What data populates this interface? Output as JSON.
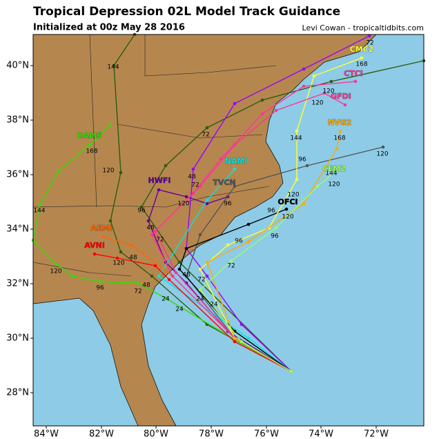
{
  "header": {
    "title": "Tropical Depression 02L Model Track Guidance",
    "subtitle": "Initialized at 00z May 28 2016",
    "credit": "Levi Cowan - tropicaltidbits.com"
  },
  "map": {
    "lat_labels": [
      "40°N",
      "38°N",
      "36°N",
      "34°N",
      "32°N",
      "30°N",
      "28°N"
    ],
    "lon_labels": [
      "84°W",
      "82°W",
      "80°W",
      "78°W",
      "76°W",
      "74°W",
      "72°W"
    ],
    "models": [
      {
        "name": "BAMS",
        "color": "#33dd00"
      },
      {
        "name": "HWFI",
        "color": "#660099"
      },
      {
        "name": "NAMI",
        "color": "#00e5e5"
      },
      {
        "name": "TVCN",
        "color": "#555555"
      },
      {
        "name": "OFCI",
        "color": "#000000"
      },
      {
        "name": "AEMI",
        "color": "#ff6600"
      },
      {
        "name": "AVNI",
        "color": "#ff0000"
      },
      {
        "name": "CMC2",
        "color": "#ffff33"
      },
      {
        "name": "CTCI",
        "color": "#ff3399"
      },
      {
        "name": "GFDI",
        "color": "#ff3399"
      },
      {
        "name": "NVG2",
        "color": "#ffaa00"
      },
      {
        "name": "CEM2",
        "color": "#99ff66"
      }
    ],
    "hour_labels": [
      "144",
      "120",
      "168",
      "120",
      "144",
      "96",
      "96",
      "72",
      "48",
      "24",
      "24",
      "24",
      "48",
      "72",
      "96",
      "120",
      "72",
      "48",
      "72",
      "96",
      "120",
      "96",
      "120",
      "120",
      "144",
      "168",
      "120",
      "168",
      "96",
      "120",
      "144",
      "96",
      "72",
      "48",
      "72",
      "120",
      "72",
      "120",
      "48",
      "24"
    ]
  }
}
